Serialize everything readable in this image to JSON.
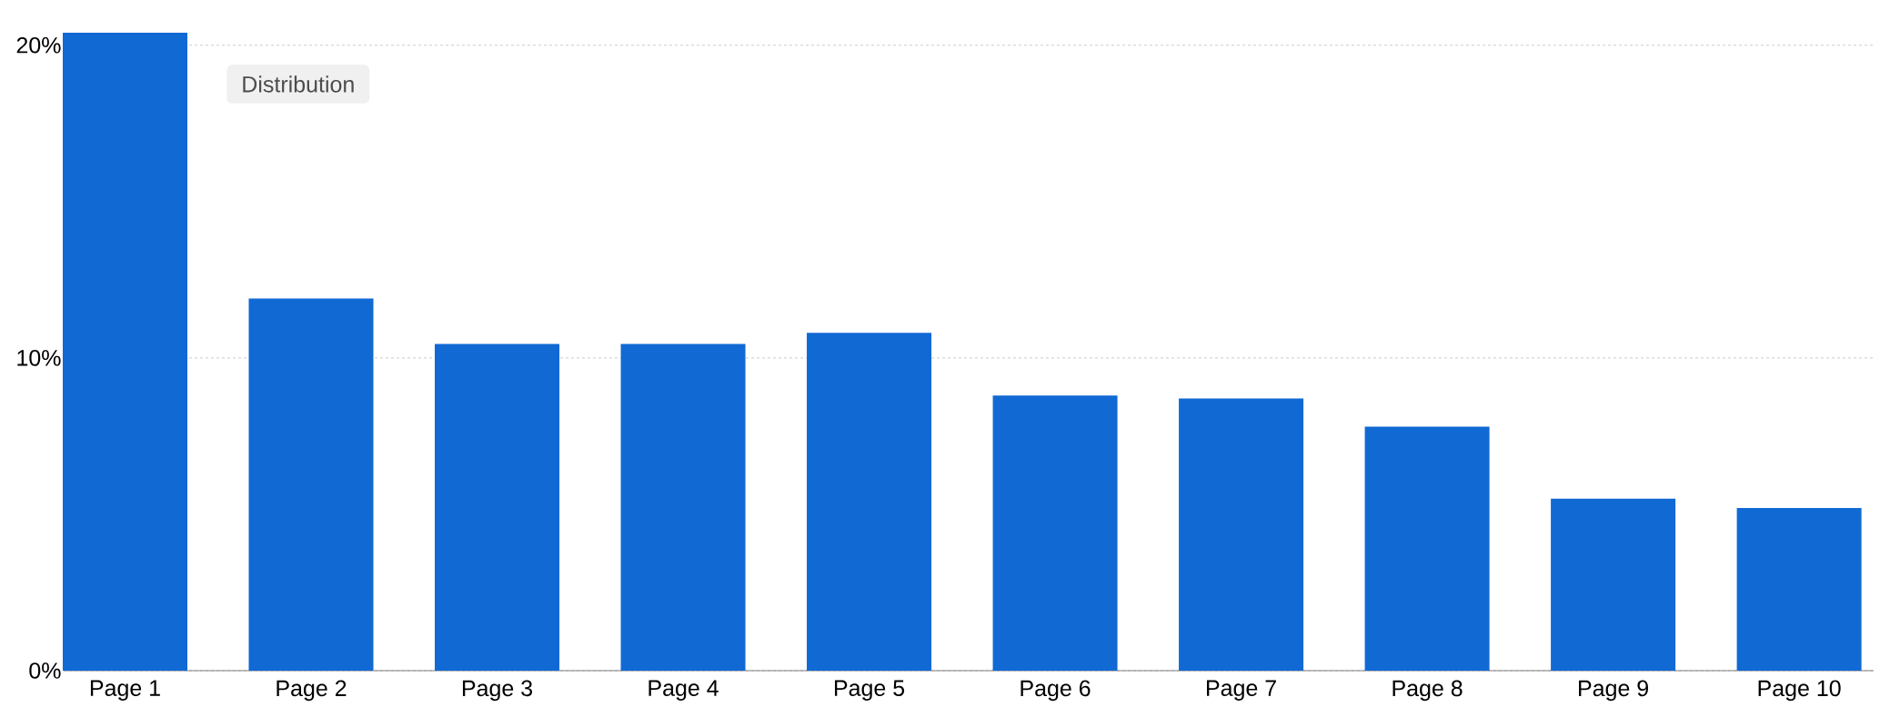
{
  "chart_data": {
    "type": "bar",
    "categories": [
      "Page 1",
      "Page 2",
      "Page 3",
      "Page 4",
      "Page 5",
      "Page 6",
      "Page 7",
      "Page 8",
      "Page 9",
      "Page 10"
    ],
    "values": [
      20.4,
      11.9,
      10.45,
      10.45,
      10.8,
      8.8,
      8.7,
      7.8,
      5.5,
      5.2
    ],
    "color": "#1169d4",
    "ylim": [
      0,
      20.4
    ],
    "yticks": [
      {
        "value": 0,
        "label": "0%"
      },
      {
        "value": 10,
        "label": "10%"
      },
      {
        "value": 20,
        "label": "20%"
      }
    ],
    "grid": "y",
    "annotations": [
      "Distribution"
    ]
  }
}
